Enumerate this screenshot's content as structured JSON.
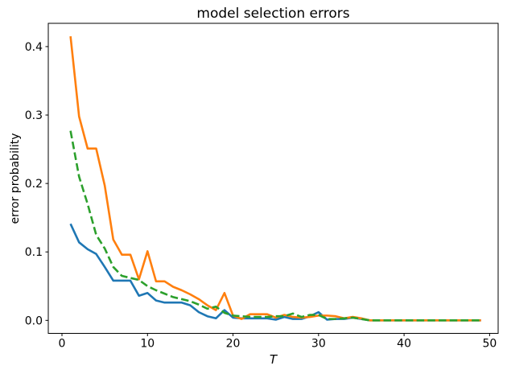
{
  "chart_data": {
    "type": "line",
    "title": "model selection errors",
    "xlabel": "T",
    "ylabel": "error probability",
    "xlim": [
      -1.6,
      51.0
    ],
    "ylim": [
      -0.019,
      0.434
    ],
    "x_ticks": [
      "0",
      "10",
      "20",
      "30",
      "40",
      "50"
    ],
    "x_tick_values": [
      0,
      10,
      20,
      30,
      40,
      50
    ],
    "y_ticks": [
      "0.0",
      "0.1",
      "0.2",
      "0.3",
      "0.4"
    ],
    "y_tick_values": [
      0.0,
      0.1,
      0.2,
      0.3,
      0.4
    ],
    "grid": false,
    "legend": "none",
    "background": "#ffffff",
    "spine_color": "#000000",
    "x": [
      1,
      2,
      3,
      4,
      5,
      6,
      7,
      8,
      9,
      10,
      11,
      12,
      13,
      14,
      15,
      16,
      17,
      18,
      19,
      20,
      21,
      22,
      23,
      24,
      25,
      26,
      27,
      28,
      29,
      30,
      31,
      32,
      33,
      34,
      35,
      36,
      37,
      38,
      39,
      40,
      41,
      42,
      43,
      44,
      45,
      46,
      47,
      48,
      49
    ],
    "series": [
      {
        "name": "blue-solid",
        "color": "#1f77b4",
        "style": "solid",
        "values": [
          0.141,
          0.114,
          0.104,
          0.097,
          0.078,
          0.058,
          0.058,
          0.058,
          0.036,
          0.04,
          0.029,
          0.026,
          0.026,
          0.026,
          0.022,
          0.012,
          0.006,
          0.003,
          0.015,
          0.004,
          0.003,
          0.003,
          0.003,
          0.003,
          0.001,
          0.005,
          0.002,
          0.002,
          0.006,
          0.012,
          0.001,
          0.002,
          0.002,
          0.004,
          0.002,
          0,
          0,
          0,
          0,
          0,
          0,
          0,
          0,
          0,
          0,
          0,
          0,
          0,
          0
        ]
      },
      {
        "name": "orange-solid",
        "color": "#ff7f0e",
        "style": "solid",
        "values": [
          0.415,
          0.298,
          0.251,
          0.251,
          0.197,
          0.118,
          0.096,
          0.096,
          0.06,
          0.101,
          0.057,
          0.057,
          0.049,
          0.044,
          0.038,
          0.031,
          0.022,
          0.015,
          0.04,
          0.007,
          0.002,
          0.009,
          0.009,
          0.009,
          0.004,
          0.008,
          0.005,
          0.004,
          0.005,
          0.007,
          0.007,
          0.006,
          0.003,
          0.005,
          0.003,
          0,
          0,
          0,
          0,
          0,
          0,
          0,
          0,
          0,
          0,
          0,
          0,
          0,
          0
        ]
      },
      {
        "name": "green-dashed",
        "color": "#2ca02c",
        "style": "dashed",
        "values": [
          0.277,
          0.21,
          0.17,
          0.125,
          0.105,
          0.078,
          0.065,
          0.062,
          0.059,
          0.05,
          0.044,
          0.039,
          0.034,
          0.031,
          0.028,
          0.023,
          0.017,
          0.02,
          0.011,
          0.007,
          0.006,
          0.005,
          0.005,
          0.005,
          0.006,
          0.006,
          0.01,
          0.005,
          0.008,
          0.008,
          0.002,
          0.002,
          0.003,
          0.004,
          0.002,
          0,
          0,
          0,
          0,
          0,
          0,
          0,
          0,
          0,
          0,
          0,
          0,
          0,
          0
        ]
      }
    ]
  }
}
